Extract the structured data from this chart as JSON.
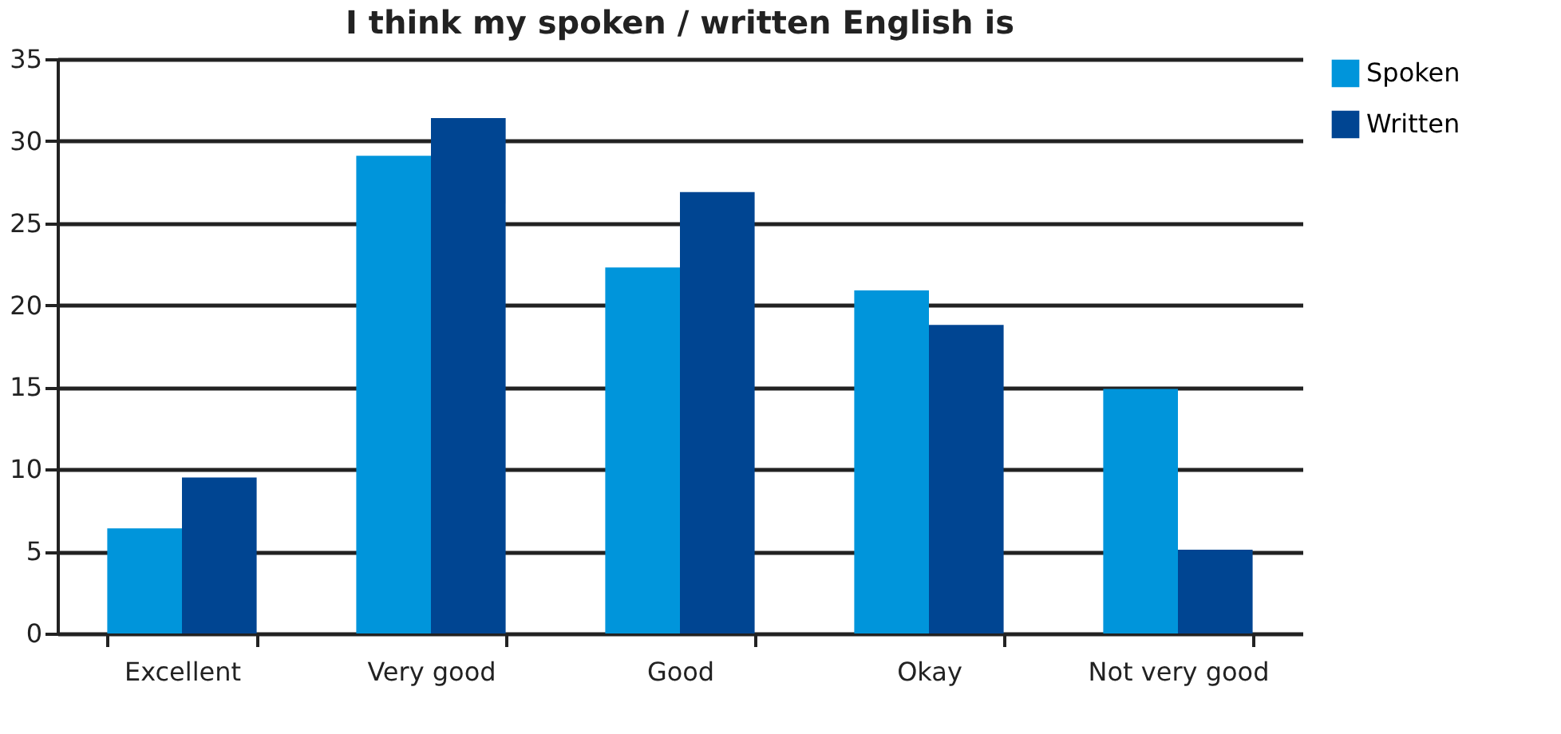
{
  "chart_data": {
    "type": "bar",
    "title": "I think my spoken / written English is",
    "categories": [
      "Excellent",
      "Very good",
      "Good",
      "Okay",
      "Not very good"
    ],
    "series": [
      {
        "name": "Spoken",
        "color": "#0095db",
        "values": [
          6.4,
          29.1,
          22.3,
          20.9,
          14.9
        ]
      },
      {
        "name": "Written",
        "color": "#004592",
        "values": [
          9.5,
          31.4,
          26.9,
          18.8,
          5.1
        ]
      }
    ],
    "ylim": [
      0,
      35
    ],
    "yticks": [
      0,
      5,
      10,
      15,
      20,
      25,
      30,
      35
    ],
    "grid": "y",
    "legend": "right"
  }
}
